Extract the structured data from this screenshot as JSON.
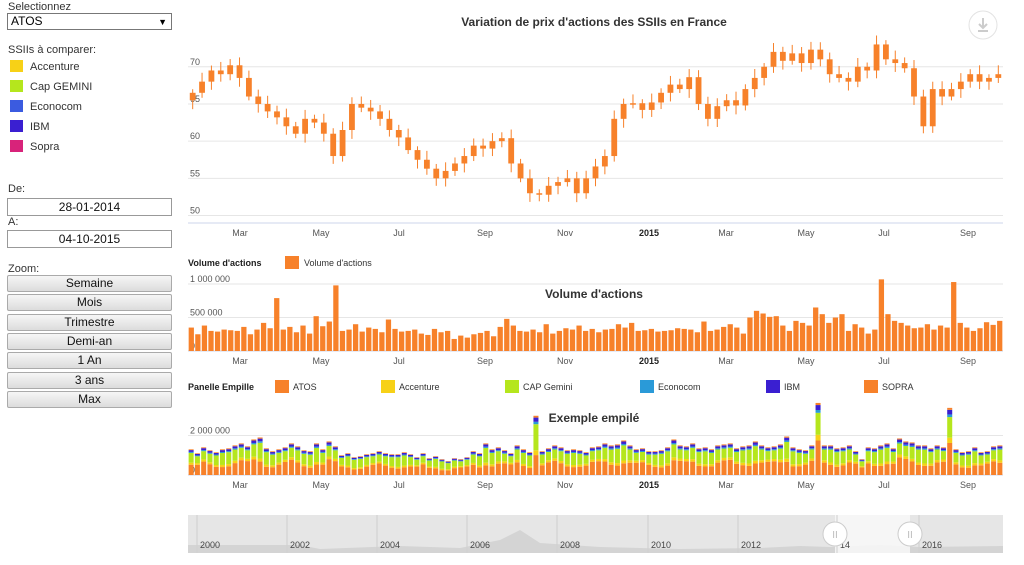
{
  "panel": {
    "select_label": "Selectionnez",
    "selected": "ATOS",
    "compare_label": "SSIIs à comparer:",
    "companies": [
      {
        "name": "Accenture",
        "color": "#f7d117"
      },
      {
        "name": "Cap GEMINI",
        "color": "#b5e61d"
      },
      {
        "name": "Econocom",
        "color": "#3b5be0"
      },
      {
        "name": "IBM",
        "color": "#3a1fd1"
      },
      {
        "name": "Sopra",
        "color": "#d8237a"
      }
    ],
    "from_label": "De:",
    "from_value": "28-01-2014",
    "to_label": "A:",
    "to_value": "04-10-2015",
    "zoom_label": "Zoom:",
    "zoom_buttons": [
      "Semaine",
      "Mois",
      "Trimestre",
      "Demi-an",
      "1 An",
      "3 ans",
      "Max"
    ]
  },
  "chart_data": [
    {
      "type": "candlestick",
      "title": "Variation de prix d'actions des SSIIs en France",
      "ylim": [
        49,
        74
      ],
      "yticks": [
        50,
        55,
        60,
        65,
        70
      ],
      "xticks": [
        "Mar",
        "May",
        "Jul",
        "Sep",
        "Nov",
        "2015",
        "Mar",
        "May",
        "Jul",
        "Sep"
      ],
      "color": "#f7812a",
      "close": [
        66.5,
        68,
        69.5,
        69,
        70.2,
        68.5,
        66,
        65,
        64,
        63.2,
        62,
        61,
        63,
        62.5,
        61,
        58,
        61.5,
        65,
        64.5,
        64,
        63,
        61.5,
        60.5,
        58.8,
        57.5,
        56.3,
        55,
        56,
        57,
        58,
        59.4,
        59,
        60,
        60.4,
        57,
        55,
        53,
        52.8,
        54,
        54.5,
        55,
        53,
        55,
        56.6,
        58,
        63,
        65,
        65.1,
        64.2,
        65.2,
        66.5,
        67.6,
        67,
        68.6,
        65,
        63,
        64.7,
        65.5,
        64.8,
        67,
        68.5,
        70,
        72,
        70.8,
        71.8,
        70.5,
        72.3,
        71,
        69,
        68.5,
        68,
        70,
        69.5,
        73,
        71,
        70.5,
        69.8,
        66,
        62,
        67,
        66,
        67,
        68,
        69,
        68,
        68.5,
        69
      ],
      "amplitude": 1.2
    },
    {
      "type": "bar",
      "title": "Volume d'actions",
      "legend_title": "Volume d'actions",
      "legend": [
        "Volume d'actions"
      ],
      "color": "#f7812a",
      "ylim": [
        0,
        1150000
      ],
      "yticks": [
        0,
        500000,
        1000000
      ],
      "ytick_labels": [
        "0",
        "500 000",
        "1 000 000"
      ],
      "xticks": [
        "Mar",
        "May",
        "Jul",
        "Sep",
        "Nov",
        "2015",
        "Mar",
        "May",
        "Jul",
        "Sep"
      ],
      "values": [
        350000,
        250000,
        380000,
        300000,
        290000,
        320000,
        310000,
        300000,
        360000,
        250000,
        320000,
        420000,
        340000,
        790000,
        320000,
        360000,
        280000,
        380000,
        260000,
        520000,
        370000,
        440000,
        980000,
        300000,
        320000,
        400000,
        290000,
        350000,
        330000,
        280000,
        470000,
        330000,
        290000,
        300000,
        320000,
        260000,
        240000,
        330000,
        280000,
        300000,
        180000,
        230000,
        200000,
        250000,
        270000,
        300000,
        220000,
        360000,
        480000,
        380000,
        300000,
        290000,
        320000,
        280000,
        400000,
        260000,
        300000,
        340000,
        320000,
        380000,
        300000,
        330000,
        280000,
        320000,
        330000,
        400000,
        350000,
        420000,
        300000,
        310000,
        330000,
        290000,
        300000,
        310000,
        340000,
        330000,
        320000,
        280000,
        440000,
        300000,
        320000,
        360000,
        400000,
        350000,
        260000,
        500000,
        600000,
        560000,
        510000,
        520000,
        380000,
        300000,
        450000,
        420000,
        380000,
        650000,
        550000,
        420000,
        500000,
        550000,
        300000,
        400000,
        350000,
        260000,
        320000,
        1070000,
        550000,
        450000,
        420000,
        380000,
        340000,
        350000,
        400000,
        320000,
        380000,
        350000,
        1030000,
        420000,
        350000,
        300000,
        340000,
        430000,
        390000,
        450000
      ],
      "value_decimals": 0
    },
    {
      "type": "stacked_bar",
      "title": "Exemple empilé",
      "legend_title": "Panelle Empille",
      "ylim": [
        0,
        3900000
      ],
      "yticks": [
        0,
        2000000
      ],
      "ytick_labels": [
        "0",
        "2 000 000"
      ],
      "xticks": [
        "Mar",
        "May",
        "Jul",
        "Sep",
        "Nov",
        "2015",
        "Mar",
        "May",
        "Jul",
        "Sep"
      ],
      "series": [
        {
          "name": "ATOS",
          "color": "#f7812a"
        },
        {
          "name": "Accenture",
          "color": "#f7d117"
        },
        {
          "name": "CAP Gemini",
          "color": "#b5e61d"
        },
        {
          "name": "Econocom",
          "color": "#2a9ad8"
        },
        {
          "name": "IBM",
          "color": "#3a1fd1"
        },
        {
          "name": "SOPRA",
          "color": "#f7812a"
        }
      ],
      "totals": [
        1300000,
        1100000,
        1400000,
        1250000,
        1150000,
        1300000,
        1350000,
        1500000,
        1600000,
        1450000,
        1800000,
        1900000,
        1350000,
        1200000,
        1300000,
        1400000,
        1600000,
        1450000,
        1250000,
        1200000,
        1600000,
        1300000,
        1700000,
        1450000,
        1000000,
        1100000,
        900000,
        950000,
        1050000,
        1100000,
        1200000,
        1100000,
        1050000,
        1050000,
        1150000,
        1050000,
        900000,
        1100000,
        850000,
        950000,
        800000,
        700000,
        850000,
        800000,
        900000,
        1200000,
        1100000,
        1600000,
        1300000,
        1400000,
        1250000,
        1100000,
        1500000,
        1300000,
        1150000,
        3000000,
        1200000,
        1350000,
        1500000,
        1400000,
        1250000,
        1300000,
        1250000,
        1150000,
        1400000,
        1450000,
        1600000,
        1500000,
        1550000,
        1750000,
        1500000,
        1300000,
        1350000,
        1200000,
        1200000,
        1250000,
        1400000,
        1800000,
        1500000,
        1450000,
        1600000,
        1350000,
        1400000,
        1300000,
        1500000,
        1550000,
        1600000,
        1350000,
        1450000,
        1500000,
        1700000,
        1500000,
        1400000,
        1450000,
        1550000,
        1950000,
        1400000,
        1300000,
        1250000,
        1500000,
        3650000,
        1500000,
        1500000,
        1350000,
        1400000,
        1500000,
        1200000,
        800000,
        1400000,
        1350000,
        1500000,
        1600000,
        1350000,
        1850000,
        1700000,
        1650000,
        1500000,
        1500000,
        1350000,
        1500000,
        1400000,
        3400000,
        1300000,
        1150000,
        1200000,
        1400000,
        1150000,
        1200000,
        1450000,
        1500000
      ],
      "shares": [
        0.4,
        0.08,
        0.38,
        0.04,
        0.07,
        0.03
      ]
    }
  ],
  "navigator": {
    "years": [
      "2000",
      "2002",
      "2004",
      "2006",
      "2008",
      "2010",
      "2012",
      "14",
      "2016"
    ],
    "handle_left": "II",
    "handle_right": "II"
  },
  "export_icon": "download-icon"
}
